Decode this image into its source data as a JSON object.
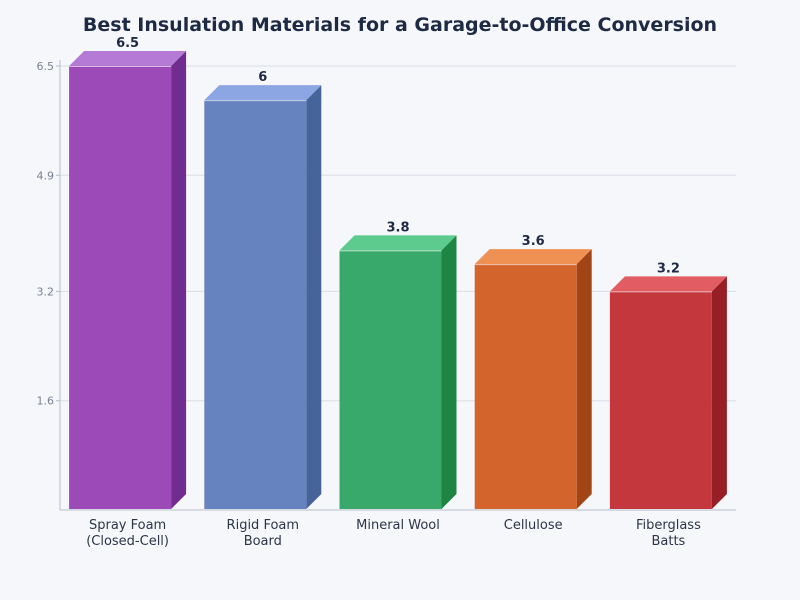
{
  "chart_data": {
    "type": "bar",
    "title": "Best Insulation Materials for a Garage-to-Office Conversion",
    "xlabel": "",
    "ylabel": "",
    "categories": [
      [
        "Spray Foam",
        "(Closed-Cell)"
      ],
      [
        "Rigid Foam",
        "Board"
      ],
      [
        "Mineral Wool"
      ],
      [
        "Cellulose"
      ],
      [
        "Fiberglass",
        "Batts"
      ]
    ],
    "values": [
      6.5,
      6,
      3.8,
      3.6,
      3.2
    ],
    "value_labels": [
      "6.5",
      "6",
      "3.8",
      "3.6",
      "3.2"
    ],
    "y_ticks": [
      1.6,
      3.2,
      4.9,
      6.5
    ],
    "y_tick_labels": [
      "1.6",
      "3.2",
      "4.9",
      "6.5"
    ],
    "ylim": [
      0,
      6.5
    ],
    "grid": true,
    "legend": "none",
    "bar_style": "3d",
    "colors": {
      "front": [
        "#9b4ab8",
        "#6683c0",
        "#38a96a",
        "#d3652c",
        "#c4373d"
      ],
      "side": [
        "#702c8e",
        "#44649a",
        "#1f8543",
        "#a14517",
        "#971e24"
      ],
      "top": [
        "#b57ad6",
        "#8ca6e3",
        "#5ccb8d",
        "#ee9153",
        "#e25d63"
      ]
    }
  }
}
